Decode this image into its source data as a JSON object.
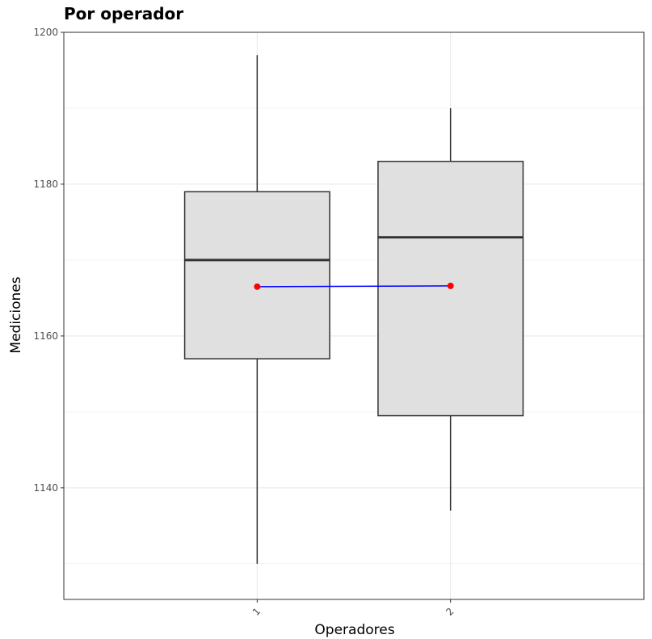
{
  "chart_data": {
    "type": "box",
    "title": "Por operador",
    "xlabel": "Operadores",
    "ylabel": "Mediciones",
    "categories": [
      "1",
      "2"
    ],
    "ylim": [
      1125.3,
      1200
    ],
    "y_ticks": [
      "1140",
      "1160",
      "1180",
      "1200"
    ],
    "boxes": [
      {
        "category": "1",
        "whisker_low": 1130,
        "q1": 1157,
        "median": 1170,
        "q3": 1179,
        "whisker_high": 1197,
        "mean": 1166.5
      },
      {
        "category": "2",
        "whisker_low": 1137,
        "q1": 1149.5,
        "median": 1173,
        "q3": 1183,
        "whisker_high": 1190,
        "mean": 1166.6
      }
    ],
    "mean_line": {
      "color": "#0000ff",
      "point_color": "#ff0000"
    },
    "box_fill": "#e0e0e0",
    "grid": true,
    "legend": "none"
  }
}
